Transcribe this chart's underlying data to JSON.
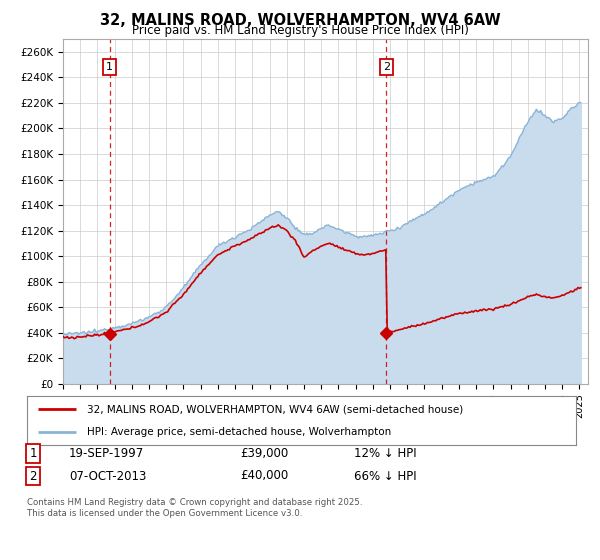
{
  "title": "32, MALINS ROAD, WOLVERHAMPTON, WV4 6AW",
  "subtitle": "Price paid vs. HM Land Registry's House Price Index (HPI)",
  "plot_bg_color": "#ffffff",
  "fig_bg_color": "#ffffff",
  "hpi_color": "#8ab4d4",
  "hpi_fill_color": "#c8dced",
  "price_color": "#cc0000",
  "marker_color": "#cc0000",
  "dashed_line_color": "#cc0000",
  "ylim": [
    0,
    270000
  ],
  "yticks": [
    0,
    20000,
    40000,
    60000,
    80000,
    100000,
    120000,
    140000,
    160000,
    180000,
    200000,
    220000,
    240000,
    260000
  ],
  "sale1_date": "19-SEP-1997",
  "sale1_price": 39000,
  "sale1_label": "1",
  "sale1_pct": "12% ↓ HPI",
  "sale2_date": "07-OCT-2013",
  "sale2_price": 40000,
  "sale2_label": "2",
  "sale2_pct": "66% ↓ HPI",
  "legend_line1": "32, MALINS ROAD, WOLVERHAMPTON, WV4 6AW (semi-detached house)",
  "legend_line2": "HPI: Average price, semi-detached house, Wolverhampton",
  "footnote": "Contains HM Land Registry data © Crown copyright and database right 2025.\nThis data is licensed under the Open Government Licence v3.0.",
  "x_start_year": 1995,
  "x_end_year": 2025
}
